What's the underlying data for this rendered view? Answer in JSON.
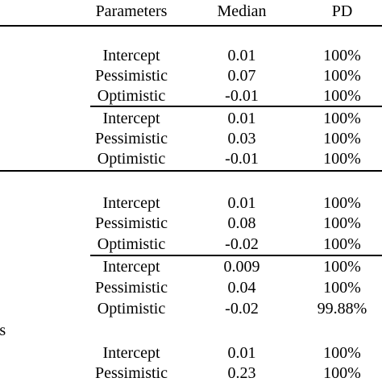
{
  "header": {
    "parameters": "Parameters",
    "median": "Median",
    "pd": "PD"
  },
  "rows": [
    {
      "parameter": "Intercept",
      "median": "0.01",
      "pd": "100%"
    },
    {
      "parameter": "Pessimistic",
      "median": "0.07",
      "pd": "100%"
    },
    {
      "parameter": "Optimistic",
      "median": "-0.01",
      "pd": "100%"
    },
    {
      "parameter": "Intercept",
      "median": "0.01",
      "pd": "100%"
    },
    {
      "parameter": "Pessimistic",
      "median": "0.03",
      "pd": "100%"
    },
    {
      "parameter": "Optimistic",
      "median": "-0.01",
      "pd": "100%"
    },
    {
      "parameter": "Intercept",
      "median": "0.01",
      "pd": "100%"
    },
    {
      "parameter": "Pessimistic",
      "median": "0.08",
      "pd": "100%"
    },
    {
      "parameter": "Optimistic",
      "median": "-0.02",
      "pd": "100%"
    },
    {
      "parameter": "Intercept",
      "median": "0.009",
      "pd": "100%"
    },
    {
      "parameter": "Pessimistic",
      "median": "0.04",
      "pd": "100%"
    },
    {
      "parameter": "Optimistic",
      "median": "-0.02",
      "pd": "99.88%"
    },
    {
      "parameter": "Intercept",
      "median": "0.01",
      "pd": "100%"
    },
    {
      "parameter": "Pessimistic",
      "median": "0.23",
      "pd": "100%"
    }
  ],
  "section_label_fragment": "sis"
}
